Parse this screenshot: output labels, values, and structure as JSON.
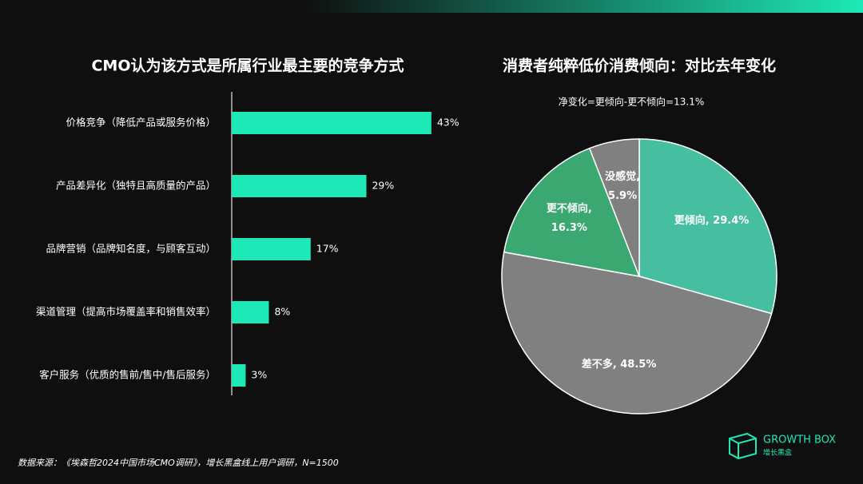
{
  "chart_data": [
    {
      "type": "bar",
      "title": "CMO认为该方式是所属行业最主要的竞争方式",
      "categories": [
        "价格竞争（降低产品或服务价格）",
        "产品差异化（独特且高质量的产品）",
        "品牌营销（品牌知名度，与顾客互动）",
        "渠道管理（提高市场覆盖率和销售效率）",
        "客户服务（优质的售前/售中/售后服务）"
      ],
      "values": [
        43,
        29,
        17,
        8,
        3
      ],
      "value_labels": [
        "43%",
        "29%",
        "17%",
        "8%",
        "3%"
      ],
      "color": "#1de9b6"
    },
    {
      "type": "pie",
      "title": "消费者纯粹低价消费倾向：对比去年变化",
      "subtitle": "净变化=更倾向-更不倾向=13.1%",
      "values": [
        29.4,
        48.5,
        16.3,
        5.9
      ],
      "value_labels": [
        "更倾向, 29.4%",
        "差不多, 48.5%",
        "更不倾向,\n16.3%",
        "没感觉,\n5.9%"
      ],
      "colors": [
        "#45bf9f",
        "#808080",
        "#3aa870",
        "#808080"
      ]
    }
  ],
  "source": "数据来源：《埃森哲2024中国市场CMO调研》，增长黑盒线上用户调研，N=1500",
  "logo": {
    "name": "GROWTH BOX",
    "subname": "增长黑盒"
  }
}
